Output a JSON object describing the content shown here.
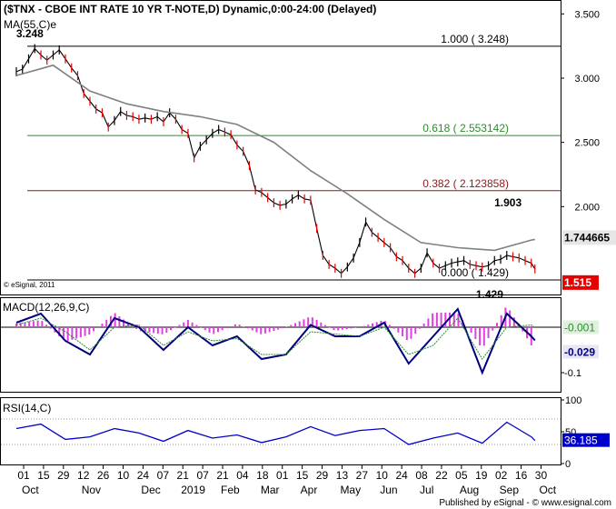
{
  "chart_data": {
    "type": "line",
    "title": "($TNX - CBOE INT RATE 10 YR T-NOTE,D) Dynamic,0:00-24:00 (Delayed)",
    "price_panel": {
      "ma_label": "MA(55,C)e",
      "ylim": [
        1.33,
        3.58
      ],
      "ticks": [
        "3.500",
        "3.000",
        "2.500",
        "2.000"
      ],
      "tick_values": [
        3.5,
        3.0,
        2.5,
        2.0
      ],
      "copyright": "© eSignal, 2011",
      "high_label": "3.248",
      "high_point": [
        1.1,
        3.248
      ],
      "peak_label": "1.903",
      "peak_point": [
        40.1,
        1.903
      ],
      "low_label": "1.429",
      "low_point": [
        38.6,
        1.429
      ],
      "last_price": "1.515",
      "last_price_value": 1.515,
      "last_ma": "1.744665",
      "last_ma_value": 1.744665,
      "fib_levels": [
        {
          "label": "1.000 ( 3.248)",
          "value": 3.248,
          "color": "#000000"
        },
        {
          "label": "0.618 ( 2.553142)",
          "value": 2.553142,
          "color": "#2e8b2e"
        },
        {
          "label": "0.382 ( 2.123858)",
          "value": 2.123858,
          "color": "#8b1a1a"
        },
        {
          "label": "0.000 ( 1.429)",
          "value": 1.429,
          "color": "#000000"
        }
      ],
      "series": [
        {
          "name": "price",
          "color": "#000000",
          "x": [
            0,
            0.5,
            1,
            1.5,
            2,
            2.5,
            3,
            3.5,
            4,
            4.5,
            5,
            5.5,
            6,
            6.5,
            7,
            7.5,
            8,
            8.5,
            9,
            9.5,
            10,
            10.5,
            11,
            11.5,
            12,
            12.5,
            13,
            13.5,
            14,
            14.5,
            15,
            15.5,
            16,
            16.5,
            17,
            17.5,
            18,
            18.5,
            19,
            19.5,
            20,
            20.5,
            21,
            21.5,
            22,
            22.5,
            23,
            23.5,
            24,
            24.5,
            25,
            25.5,
            26,
            26.5,
            27,
            27.5,
            28,
            28.5,
            29,
            29.5,
            30,
            30.5,
            31,
            31.5,
            32,
            32.5,
            33,
            33.5,
            34,
            34.5,
            35,
            35.5,
            36,
            36.5,
            37,
            37.5,
            38,
            38.5,
            39,
            39.5,
            40,
            40.5,
            41,
            41.5,
            42,
            42.3
          ],
          "values": [
            3.05,
            3.07,
            3.15,
            3.23,
            3.18,
            3.14,
            3.18,
            3.22,
            3.15,
            3.08,
            3.02,
            2.88,
            2.82,
            2.76,
            2.73,
            2.62,
            2.67,
            2.74,
            2.71,
            2.7,
            2.68,
            2.69,
            2.68,
            2.7,
            2.66,
            2.73,
            2.68,
            2.6,
            2.57,
            2.38,
            2.47,
            2.52,
            2.57,
            2.6,
            2.58,
            2.56,
            2.48,
            2.43,
            2.32,
            2.13,
            2.11,
            2.07,
            2.03,
            2.01,
            2.02,
            2.06,
            2.09,
            2.06,
            2.05,
            1.83,
            1.62,
            1.55,
            1.52,
            1.48,
            1.53,
            1.6,
            1.72,
            1.88,
            1.8,
            1.76,
            1.72,
            1.68,
            1.61,
            1.58,
            1.52,
            1.48,
            1.52,
            1.64,
            1.56,
            1.52,
            1.54,
            1.56,
            1.57,
            1.58,
            1.55,
            1.54,
            1.53,
            1.54,
            1.58,
            1.59,
            1.62,
            1.61,
            1.6,
            1.58,
            1.56,
            1.515
          ]
        },
        {
          "name": "MA(55,C)e",
          "color": "#808080",
          "x": [
            0,
            3,
            6,
            9,
            12,
            15,
            18,
            21,
            24,
            27,
            30,
            33,
            36,
            39,
            42,
            42.3
          ],
          "values": [
            3.02,
            3.1,
            2.9,
            2.8,
            2.74,
            2.7,
            2.64,
            2.5,
            2.28,
            2.1,
            1.9,
            1.72,
            1.68,
            1.66,
            1.74,
            1.744665
          ]
        }
      ]
    },
    "macd_panel": {
      "label": "MACD(12,26,9,C)",
      "ylim": [
        -0.14,
        0.06
      ],
      "ticks": [
        "-0.1"
      ],
      "tick_values": [
        -0.1
      ],
      "last_signal": "-0.001",
      "last_signal_value": -0.001,
      "last_macd": "-0.029",
      "last_macd_value": -0.029,
      "series": [
        {
          "name": "MACD",
          "color": "#000080",
          "x": [
            0,
            2,
            4,
            6,
            8,
            10,
            12,
            14,
            16,
            18,
            20,
            22,
            24,
            26,
            28,
            30,
            32,
            34,
            36,
            38,
            40,
            42,
            42.3
          ],
          "values": [
            0.01,
            0.03,
            -0.03,
            -0.06,
            0.02,
            0.0,
            -0.05,
            0.0,
            -0.04,
            -0.02,
            -0.07,
            -0.06,
            0.005,
            -0.02,
            -0.02,
            0.01,
            -0.08,
            -0.02,
            0.04,
            -0.1,
            0.03,
            -0.02,
            -0.029
          ]
        },
        {
          "name": "Signal",
          "color": "#2e8b2e",
          "x": [
            0,
            2,
            4,
            6,
            8,
            10,
            12,
            14,
            16,
            18,
            20,
            22,
            24,
            26,
            28,
            30,
            32,
            34,
            36,
            38,
            40,
            42,
            42.3
          ],
          "values": [
            0.005,
            0.02,
            -0.01,
            -0.05,
            0.0,
            0.005,
            -0.04,
            -0.01,
            -0.03,
            -0.025,
            -0.06,
            -0.06,
            -0.01,
            -0.015,
            -0.02,
            0.0,
            -0.06,
            -0.04,
            0.02,
            -0.07,
            0.0,
            0.005,
            -0.001
          ]
        }
      ]
    },
    "rsi_panel": {
      "label": "RSI(14,C)",
      "ylim": [
        0,
        100
      ],
      "ticks": [
        "100",
        "50",
        "0"
      ],
      "tick_values": [
        100,
        50,
        0
      ],
      "last_value": "36.185",
      "last_value_num": 36.185,
      "series": [
        {
          "name": "RSI",
          "color": "#0000cc",
          "x": [
            0,
            2,
            4,
            6,
            8,
            10,
            12,
            14,
            16,
            18,
            20,
            22,
            24,
            26,
            28,
            30,
            32,
            34,
            36,
            38,
            40,
            42,
            42.3
          ],
          "values": [
            55,
            62,
            38,
            42,
            55,
            48,
            35,
            52,
            40,
            45,
            33,
            42,
            58,
            44,
            52,
            55,
            30,
            40,
            48,
            32,
            65,
            42,
            36.185
          ]
        }
      ]
    },
    "x_axis": {
      "domain": [
        0,
        43.5
      ],
      "tick_labels": [
        "01",
        "15",
        "29",
        "12",
        "26",
        "10",
        "24",
        "07",
        "21",
        "07",
        "21",
        "04",
        "18",
        "01",
        "15",
        "29",
        "13",
        "27",
        "10",
        "24",
        "08",
        "22",
        "05",
        "19",
        "02",
        "16",
        "30"
      ],
      "tick_positions": [
        0,
        1,
        2,
        3,
        4,
        5,
        6,
        7,
        8,
        9,
        10,
        11,
        12,
        13,
        14,
        15,
        16,
        17,
        18,
        19,
        20,
        21,
        22,
        23,
        24,
        25,
        26
      ],
      "month_labels": [
        "Oct",
        "Nov",
        "Dec",
        "2019",
        "Feb",
        "Mar",
        "Apr",
        "May",
        "Jun",
        "Jul",
        "Aug",
        "Sep",
        "Oct"
      ],
      "month_positions": [
        0,
        3,
        6,
        8,
        10,
        12,
        14,
        16,
        18,
        20,
        22,
        24,
        26
      ]
    },
    "footer": "Published by eSignal - © www.esignal.com"
  }
}
